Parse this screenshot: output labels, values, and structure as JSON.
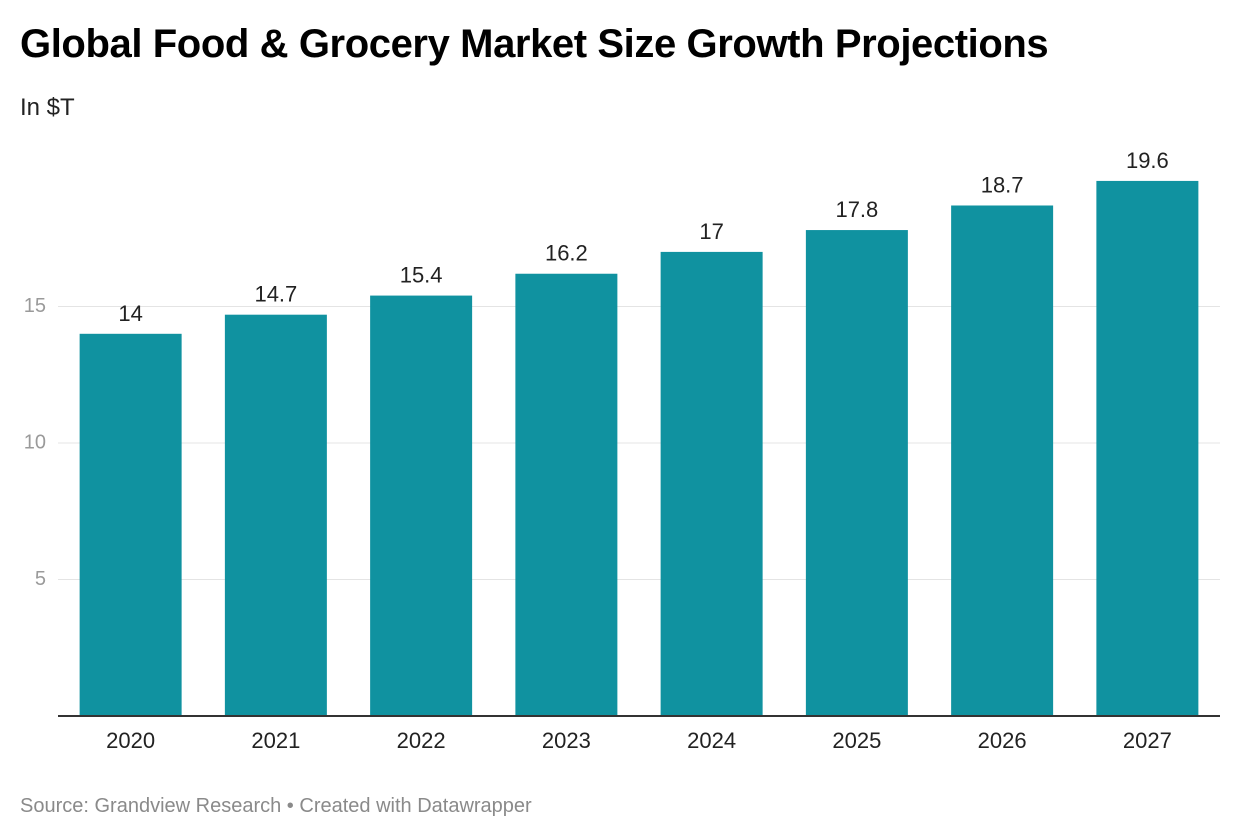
{
  "header": {
    "title": "Global Food & Grocery Market Size Growth Projections",
    "subtitle": "In $T"
  },
  "footer": {
    "source": "Source: Grandview Research",
    "separator": "•",
    "credit": "Created with Datawrapper"
  },
  "colors": {
    "bar": "#1092a0",
    "grid": "#e4e4e4",
    "axis": "#333333",
    "tick_label": "#9a9a9a",
    "category_label": "#222222",
    "value_label": "#222222"
  },
  "chart_data": {
    "type": "bar",
    "title": "Global Food & Grocery Market Size Growth Projections",
    "subtitle": "In $T",
    "categories": [
      "2020",
      "2021",
      "2022",
      "2023",
      "2024",
      "2025",
      "2026",
      "2027"
    ],
    "values": [
      14,
      14.7,
      15.4,
      16.2,
      17,
      17.8,
      18.7,
      19.6
    ],
    "value_labels": [
      "14",
      "14.7",
      "15.4",
      "16.2",
      "17",
      "17.8",
      "18.7",
      "19.6"
    ],
    "ylim": [
      0,
      20
    ],
    "yticks": [
      5,
      10,
      15
    ],
    "ytick_labels": [
      "5",
      "10",
      "15"
    ],
    "grid": true,
    "legend": "none"
  }
}
